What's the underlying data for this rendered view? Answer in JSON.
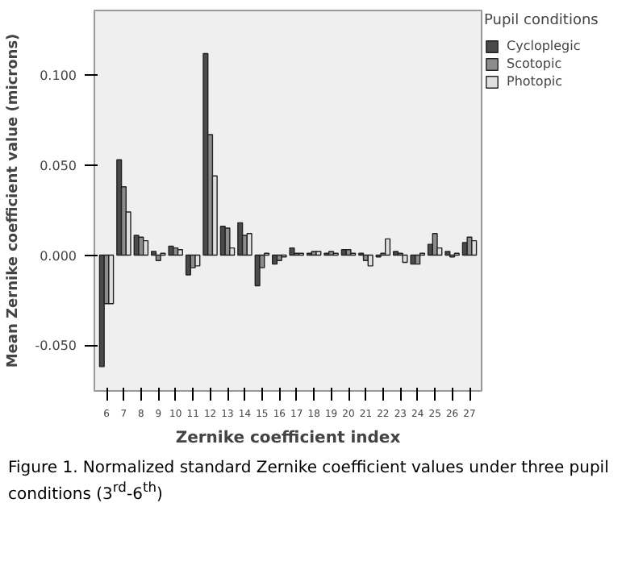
{
  "chart_data": {
    "type": "bar",
    "xlabel": "Zernike coefficient index",
    "ylabel": "Mean Zernike coefficient value (microns)",
    "legend_title": "Pupil conditions",
    "legend": "top right",
    "grid": false,
    "categories": [
      "6",
      "7",
      "8",
      "9",
      "10",
      "11",
      "12",
      "13",
      "14",
      "15",
      "16",
      "17",
      "18",
      "19",
      "20",
      "21",
      "22",
      "23",
      "24",
      "25",
      "26",
      "27"
    ],
    "ylim": [
      -0.0755,
      0.136
    ],
    "yticks": [
      {
        "value": -0.05,
        "label": "-0.050"
      },
      {
        "value": 0,
        "label": "0.000"
      },
      {
        "value": 0.05,
        "label": "0.050"
      },
      {
        "value": 0.1,
        "label": "0.100"
      }
    ],
    "series": [
      {
        "name": "Cycloplegic",
        "color": "#4a4a4a",
        "values": [
          -0.062,
          0.053,
          0.011,
          0.002,
          0.005,
          -0.011,
          0.112,
          0.016,
          0.018,
          -0.017,
          -0.005,
          0.004,
          0.001,
          0.001,
          0.003,
          0.001,
          -0.001,
          0.002,
          -0.005,
          0.006,
          0.002,
          0.007
        ]
      },
      {
        "name": "Scotopic",
        "color": "#8c8c8c",
        "values": [
          -0.027,
          0.038,
          0.01,
          -0.003,
          0.004,
          -0.007,
          0.067,
          0.015,
          0.011,
          -0.007,
          -0.003,
          0.001,
          0.002,
          0.002,
          0.003,
          -0.003,
          0.001,
          0.001,
          -0.005,
          0.012,
          -0.001,
          0.01
        ]
      },
      {
        "name": "Photopic",
        "color": "#e0e0e0",
        "values": [
          -0.027,
          0.024,
          0.008,
          0.001,
          0.003,
          -0.006,
          0.044,
          0.004,
          0.012,
          0.001,
          -0.001,
          0.001,
          0.002,
          0.001,
          0.001,
          -0.006,
          0.009,
          -0.004,
          0.001,
          0.004,
          0.001,
          0.008
        ]
      }
    ],
    "annotations": [
      "Figure 1. Normalized standard Zernike coefficient values under three pupil conditions (3$^{rd}$-6$^{th}$)"
    ]
  }
}
